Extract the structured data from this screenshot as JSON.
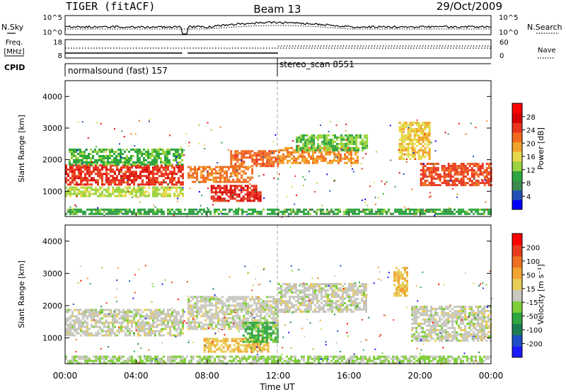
{
  "header": {
    "radar": "TIGER (fitACF)",
    "beam": "Beam 13",
    "date": "29/Oct/2009"
  },
  "strips": {
    "nsky": {
      "label": "N.Sky",
      "ticks": [
        "10^5",
        "10^0"
      ]
    },
    "nsearch": {
      "label": "N.Search",
      "ticks": [
        "10^5",
        "10^0"
      ]
    },
    "freq": {
      "label_line1": "Freq.",
      "label_line2": "[MHz]",
      "ticks": [
        "18",
        "8"
      ]
    },
    "nave": {
      "label": "Nave",
      "ticks": [
        "60",
        "0"
      ]
    },
    "cpid": {
      "label": "CPID",
      "modes": [
        {
          "name": "normalsound (fast) 157",
          "start_hour": 0
        },
        {
          "name": "stereo_scan 8551",
          "start_hour": 12
        }
      ]
    }
  },
  "colors": {
    "power": [
      "#0000ff",
      "#214fb8",
      "#3b8a4e",
      "#2fa640",
      "#9ad43f",
      "#e6d84a",
      "#f2a32b",
      "#ef6a1e",
      "#e8341b",
      "#d60000",
      "#ff0000"
    ],
    "velocity": [
      "#1a1aff",
      "#1d4ec4",
      "#1c7d52",
      "#2ea63f",
      "#7fd038",
      "#c8c8c0",
      "#e8cc58",
      "#f2a432",
      "#ee7020",
      "#e83a1c",
      "#ff0000"
    ]
  },
  "chart_data": [
    {
      "type": "heatmap",
      "name": "power",
      "xlabel": "",
      "ylabel": "Slant Range [km]",
      "xlim_hours": [
        0,
        24
      ],
      "ylim": [
        200,
        4500
      ],
      "yticks": [
        1000,
        2000,
        3000,
        4000
      ],
      "colorbar": {
        "label": "Power [dB]",
        "min": 0,
        "max": 32,
        "ticks": [
          "4",
          "8",
          "12",
          "16",
          "20",
          "24",
          "28"
        ]
      },
      "features": [
        {
          "t0": 0.0,
          "t1": 6.6,
          "r0": 1200,
          "r1": 1850,
          "value": 25
        },
        {
          "t0": 0.0,
          "t1": 6.6,
          "r0": 850,
          "r1": 1150,
          "value": 14
        },
        {
          "t0": 0.2,
          "t1": 6.6,
          "r0": 1850,
          "r1": 2350,
          "value": 11
        },
        {
          "t0": 6.9,
          "t1": 10.5,
          "r0": 1300,
          "r1": 1800,
          "value": 21
        },
        {
          "t0": 9.3,
          "t1": 12.0,
          "r0": 1800,
          "r1": 2300,
          "value": 22
        },
        {
          "t0": 8.2,
          "t1": 11.0,
          "r0": 700,
          "r1": 1200,
          "value": 26
        },
        {
          "t0": 12.0,
          "t1": 16.5,
          "r0": 1900,
          "r1": 2400,
          "value": 20
        },
        {
          "t0": 13.0,
          "t1": 17.0,
          "r0": 2300,
          "r1": 2800,
          "value": 12
        },
        {
          "t0": 18.8,
          "t1": 20.5,
          "r0": 2000,
          "r1": 3200,
          "value": 17
        },
        {
          "t0": 20.0,
          "t1": 24.0,
          "r0": 1200,
          "r1": 1900,
          "value": 24
        },
        {
          "t0": 0.0,
          "t1": 24.0,
          "r0": 250,
          "r1": 450,
          "value": 10
        }
      ]
    },
    {
      "type": "heatmap",
      "name": "velocity",
      "xlabel": "Time UT",
      "ylabel": "Slant Range [km]",
      "xlim_hours": [
        0,
        24
      ],
      "xticks": [
        "00:00",
        "04:00",
        "08:00",
        "12:00",
        "16:00",
        "20:00",
        "00:00"
      ],
      "ylim": [
        200,
        4500
      ],
      "yticks": [
        1000,
        2000,
        3000,
        4000
      ],
      "colorbar": {
        "label": "Velocity [m s⁻¹]",
        "min": -250,
        "max": 250,
        "ticks": [
          "-200",
          "-100",
          "-50",
          "-15",
          "15",
          "50",
          "100",
          "200"
        ]
      },
      "features": [
        {
          "t0": 0.0,
          "t1": 6.6,
          "r0": 1100,
          "r1": 1900,
          "value": 0
        },
        {
          "t0": 6.9,
          "t1": 12.0,
          "r0": 1300,
          "r1": 2300,
          "value": 0
        },
        {
          "t0": 12.0,
          "t1": 17.0,
          "r0": 1800,
          "r1": 2700,
          "value": 0
        },
        {
          "t0": 7.8,
          "t1": 11.5,
          "r0": 600,
          "r1": 1000,
          "value": 60
        },
        {
          "t0": 10.0,
          "t1": 12.0,
          "r0": 900,
          "r1": 1500,
          "value": -75
        },
        {
          "t0": 18.5,
          "t1": 19.3,
          "r0": 2300,
          "r1": 3200,
          "value": 60
        },
        {
          "t0": 19.5,
          "t1": 24.0,
          "r0": 900,
          "r1": 2000,
          "value": 0
        },
        {
          "t0": 0.0,
          "t1": 24.0,
          "r0": 250,
          "r1": 450,
          "value": -30
        }
      ]
    }
  ]
}
